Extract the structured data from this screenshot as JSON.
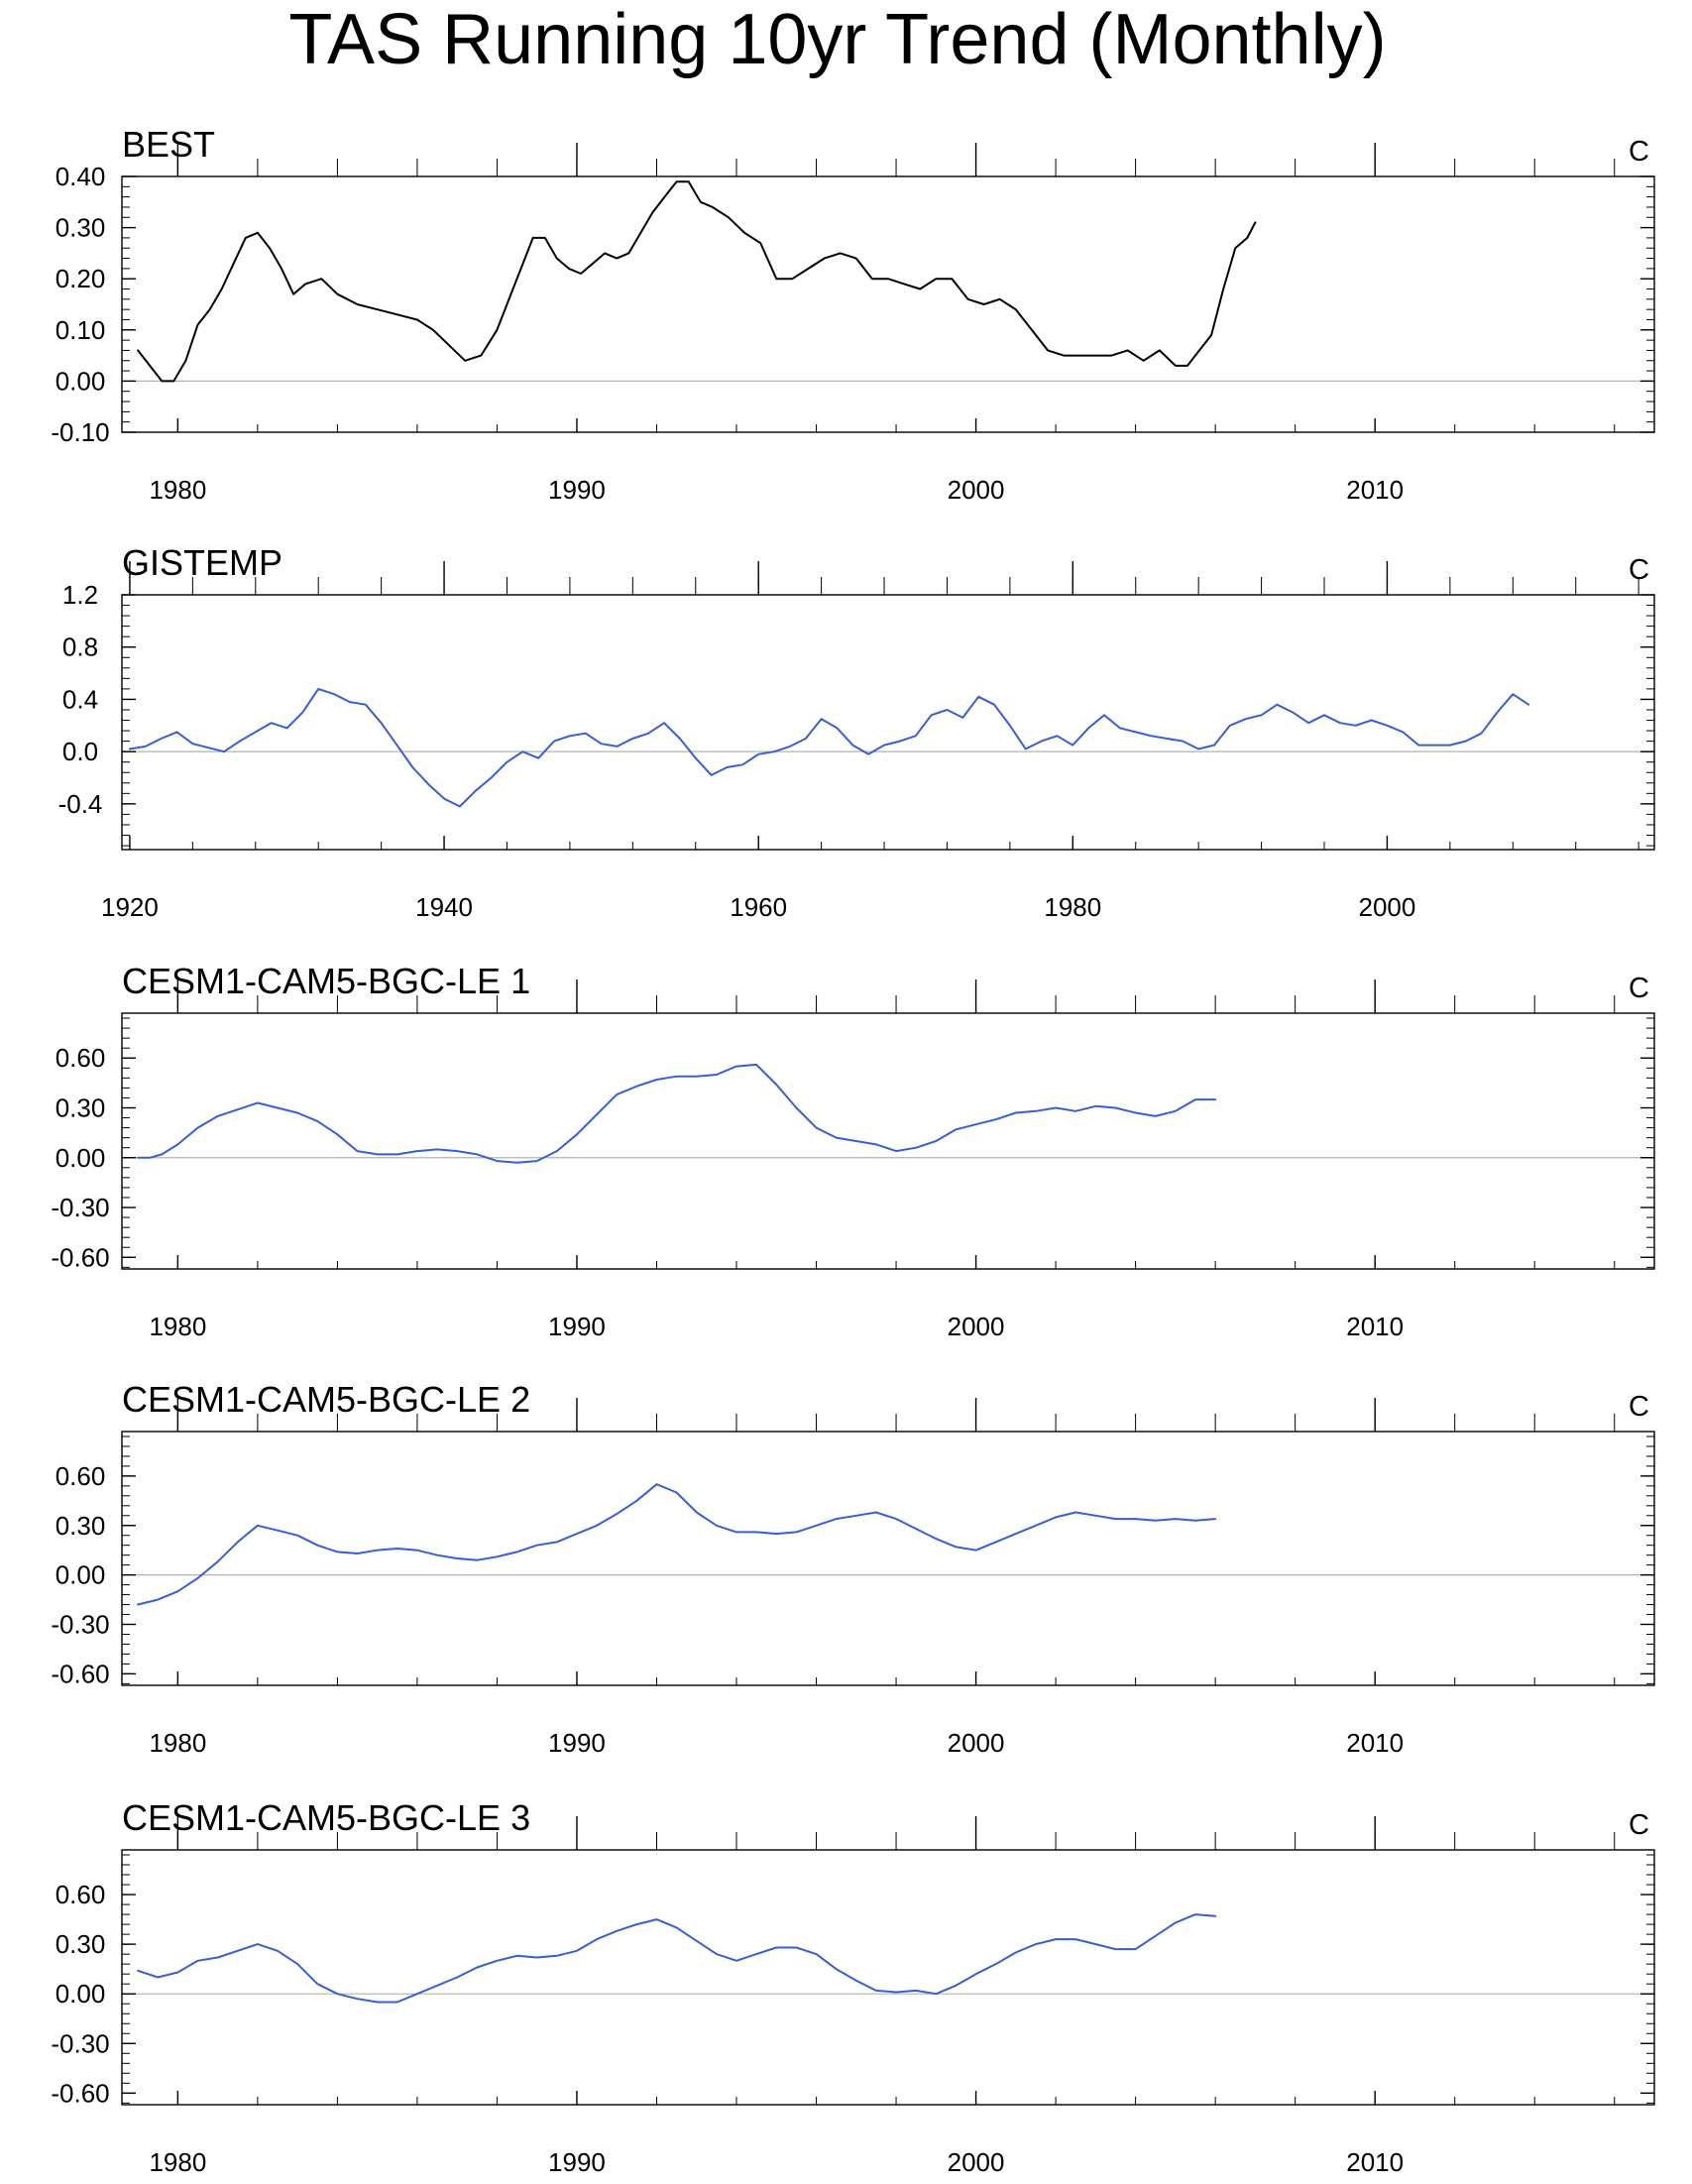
{
  "title": "TAS Running 10yr Trend (Monthly)",
  "chart_data": [
    {
      "type": "line",
      "title": "BEST",
      "units": "C",
      "color": "#000000",
      "xlim": [
        1978.6,
        2017
      ],
      "ylim": [
        -0.1,
        0.4
      ],
      "xticks": [
        1980,
        1990,
        2000,
        2010
      ],
      "yticks": [
        -0.1,
        0,
        0.1,
        0.2,
        0.3,
        0.4
      ],
      "ytick_labels": [
        "-0.10",
        "0.00",
        "0.10",
        "0.20",
        "0.30",
        "0.40"
      ],
      "x": [
        1979.0,
        1979.3,
        1979.6,
        1979.9,
        1980.2,
        1980.5,
        1980.8,
        1981.1,
        1981.4,
        1981.7,
        1982.0,
        1982.3,
        1982.6,
        1982.9,
        1983.2,
        1983.6,
        1984.0,
        1984.5,
        1985.0,
        1985.5,
        1986.0,
        1986.4,
        1986.8,
        1987.2,
        1987.6,
        1988.0,
        1988.3,
        1988.6,
        1988.9,
        1989.2,
        1989.5,
        1989.8,
        1990.1,
        1990.4,
        1990.7,
        1991.0,
        1991.3,
        1991.6,
        1991.9,
        1992.2,
        1992.5,
        1992.8,
        1993.1,
        1993.4,
        1993.8,
        1994.2,
        1994.6,
        1995.0,
        1995.4,
        1995.8,
        1996.2,
        1996.6,
        1997.0,
        1997.4,
        1997.8,
        1998.2,
        1998.6,
        1999.0,
        1999.4,
        1999.8,
        2000.2,
        2000.6,
        2001.0,
        2001.4,
        2001.8,
        2002.2,
        2002.6,
        2003.0,
        2003.4,
        2003.8,
        2004.2,
        2004.6,
        2005.0,
        2005.3,
        2005.6,
        2005.9,
        2006.2,
        2006.5,
        2006.8,
        2007.0
      ],
      "y": [
        0.06,
        0.03,
        0.0,
        0.0,
        0.04,
        0.11,
        0.14,
        0.18,
        0.23,
        0.28,
        0.29,
        0.26,
        0.22,
        0.17,
        0.19,
        0.2,
        0.17,
        0.15,
        0.14,
        0.13,
        0.12,
        0.1,
        0.07,
        0.04,
        0.05,
        0.1,
        0.16,
        0.22,
        0.28,
        0.28,
        0.24,
        0.22,
        0.21,
        0.23,
        0.25,
        0.24,
        0.25,
        0.29,
        0.33,
        0.36,
        0.39,
        0.39,
        0.35,
        0.34,
        0.32,
        0.29,
        0.27,
        0.2,
        0.2,
        0.22,
        0.24,
        0.25,
        0.24,
        0.2,
        0.2,
        0.19,
        0.18,
        0.2,
        0.2,
        0.16,
        0.15,
        0.16,
        0.14,
        0.1,
        0.06,
        0.05,
        0.05,
        0.05,
        0.05,
        0.06,
        0.04,
        0.06,
        0.03,
        0.03,
        0.06,
        0.09,
        0.18,
        0.26,
        0.28,
        0.31
      ]
    },
    {
      "type": "line",
      "title": "GISTEMP",
      "units": "C",
      "color": "#3a5fcd",
      "xlim": [
        1919.5,
        2017
      ],
      "ylim": [
        -0.75,
        1.2
      ],
      "xticks": [
        1920,
        1940,
        1960,
        1980,
        2000
      ],
      "yticks": [
        -0.4,
        0,
        0.4,
        0.8,
        1.2
      ],
      "ytick_labels": [
        "-0.4",
        "0.0",
        "0.4",
        "0.8",
        "1.2"
      ],
      "x": [
        1920,
        1921,
        1922,
        1923,
        1924,
        1925,
        1926,
        1927,
        1928,
        1929,
        1930,
        1931,
        1932,
        1933,
        1934,
        1935,
        1936,
        1937,
        1938,
        1939,
        1940,
        1941,
        1942,
        1943,
        1944,
        1945,
        1946,
        1947,
        1948,
        1949,
        1950,
        1951,
        1952,
        1953,
        1954,
        1955,
        1956,
        1957,
        1958,
        1959,
        1960,
        1961,
        1962,
        1963,
        1964,
        1965,
        1966,
        1967,
        1968,
        1969,
        1970,
        1971,
        1972,
        1973,
        1974,
        1975,
        1976,
        1977,
        1978,
        1979,
        1980,
        1981,
        1982,
        1983,
        1984,
        1985,
        1986,
        1987,
        1988,
        1989,
        1990,
        1991,
        1992,
        1993,
        1994,
        1995,
        1996,
        1997,
        1998,
        1999,
        2000,
        2001,
        2002,
        2003,
        2004,
        2005,
        2006,
        2007,
        2008,
        2009
      ],
      "y": [
        0.02,
        0.04,
        0.1,
        0.15,
        0.06,
        0.03,
        0.0,
        0.08,
        0.15,
        0.22,
        0.18,
        0.3,
        0.48,
        0.44,
        0.38,
        0.36,
        0.22,
        0.05,
        -0.12,
        -0.25,
        -0.36,
        -0.42,
        -0.3,
        -0.2,
        -0.08,
        0.0,
        -0.05,
        0.08,
        0.12,
        0.14,
        0.06,
        0.04,
        0.1,
        0.14,
        0.22,
        0.1,
        -0.05,
        -0.18,
        -0.12,
        -0.1,
        -0.02,
        0.0,
        0.04,
        0.1,
        0.25,
        0.18,
        0.05,
        -0.02,
        0.05,
        0.08,
        0.12,
        0.28,
        0.32,
        0.26,
        0.42,
        0.36,
        0.2,
        0.02,
        0.08,
        0.12,
        0.05,
        0.18,
        0.28,
        0.18,
        0.15,
        0.12,
        0.1,
        0.08,
        0.02,
        0.05,
        0.2,
        0.25,
        0.28,
        0.36,
        0.3,
        0.22,
        0.28,
        0.22,
        0.2,
        0.24,
        0.2,
        0.15,
        0.05,
        0.05,
        0.05,
        0.08,
        0.14,
        0.3,
        0.44,
        0.36
      ]
    },
    {
      "type": "line",
      "title": "CESM1-CAM5-BGC-LE 1",
      "units": "C",
      "color": "#3a5fcd",
      "xlim": [
        1978.6,
        2017
      ],
      "ylim": [
        -0.67,
        0.87
      ],
      "xticks": [
        1980,
        1990,
        2000,
        2010
      ],
      "yticks": [
        -0.6,
        -0.3,
        0,
        0.3,
        0.6
      ],
      "ytick_labels": [
        "-0.60",
        "-0.30",
        "0.00",
        "0.30",
        "0.60"
      ],
      "x": [
        1979.0,
        1979.3,
        1979.6,
        1980.0,
        1980.5,
        1981.0,
        1981.5,
        1982.0,
        1982.5,
        1983.0,
        1983.5,
        1984.0,
        1984.5,
        1985.0,
        1985.5,
        1986.0,
        1986.5,
        1987.0,
        1987.5,
        1988.0,
        1988.5,
        1989.0,
        1989.5,
        1990.0,
        1990.5,
        1991.0,
        1991.5,
        1992.0,
        1992.5,
        1993.0,
        1993.5,
        1994.0,
        1994.5,
        1995.0,
        1995.5,
        1996.0,
        1996.5,
        1997.0,
        1997.5,
        1998.0,
        1998.5,
        1999.0,
        1999.5,
        2000.0,
        2000.5,
        2001.0,
        2001.5,
        2002.0,
        2002.5,
        2003.0,
        2003.5,
        2004.0,
        2004.5,
        2005.0,
        2005.5,
        2006.0
      ],
      "y": [
        0.0,
        0.0,
        0.02,
        0.08,
        0.18,
        0.25,
        0.29,
        0.33,
        0.3,
        0.27,
        0.22,
        0.14,
        0.04,
        0.02,
        0.02,
        0.04,
        0.05,
        0.04,
        0.02,
        -0.02,
        -0.03,
        -0.02,
        0.04,
        0.14,
        0.26,
        0.38,
        0.43,
        0.47,
        0.49,
        0.49,
        0.5,
        0.55,
        0.56,
        0.44,
        0.3,
        0.18,
        0.12,
        0.1,
        0.08,
        0.04,
        0.06,
        0.1,
        0.17,
        0.2,
        0.23,
        0.27,
        0.28,
        0.3,
        0.28,
        0.31,
        0.3,
        0.27,
        0.25,
        0.28,
        0.35,
        0.35
      ]
    },
    {
      "type": "line",
      "title": "CESM1-CAM5-BGC-LE 2",
      "units": "C",
      "color": "#3a5fcd",
      "xlim": [
        1978.6,
        2017
      ],
      "ylim": [
        -0.67,
        0.87
      ],
      "xticks": [
        1980,
        1990,
        2000,
        2010
      ],
      "yticks": [
        -0.6,
        -0.3,
        0,
        0.3,
        0.6
      ],
      "ytick_labels": [
        "-0.60",
        "-0.30",
        "0.00",
        "0.30",
        "0.60"
      ],
      "x": [
        1979.0,
        1979.5,
        1980.0,
        1980.5,
        1981.0,
        1981.5,
        1982.0,
        1982.5,
        1983.0,
        1983.5,
        1984.0,
        1984.5,
        1985.0,
        1985.5,
        1986.0,
        1986.5,
        1987.0,
        1987.5,
        1988.0,
        1988.5,
        1989.0,
        1989.5,
        1990.0,
        1990.5,
        1991.0,
        1991.5,
        1992.0,
        1992.5,
        1993.0,
        1993.5,
        1994.0,
        1994.5,
        1995.0,
        1995.5,
        1996.0,
        1996.5,
        1997.0,
        1997.5,
        1998.0,
        1998.5,
        1999.0,
        1999.5,
        2000.0,
        2000.5,
        2001.0,
        2001.5,
        2002.0,
        2002.5,
        2003.0,
        2003.5,
        2004.0,
        2004.5,
        2005.0,
        2005.5,
        2006.0
      ],
      "y": [
        -0.18,
        -0.15,
        -0.1,
        -0.02,
        0.08,
        0.2,
        0.3,
        0.27,
        0.24,
        0.18,
        0.14,
        0.13,
        0.15,
        0.16,
        0.15,
        0.12,
        0.1,
        0.09,
        0.11,
        0.14,
        0.18,
        0.2,
        0.25,
        0.3,
        0.37,
        0.45,
        0.55,
        0.5,
        0.38,
        0.3,
        0.26,
        0.26,
        0.25,
        0.26,
        0.3,
        0.34,
        0.36,
        0.38,
        0.34,
        0.28,
        0.22,
        0.17,
        0.15,
        0.2,
        0.25,
        0.3,
        0.35,
        0.38,
        0.36,
        0.34,
        0.34,
        0.33,
        0.34,
        0.33,
        0.34
      ]
    },
    {
      "type": "line",
      "title": "CESM1-CAM5-BGC-LE 3",
      "units": "C",
      "color": "#3a5fcd",
      "xlim": [
        1978.6,
        2017
      ],
      "ylim": [
        -0.67,
        0.87
      ],
      "xticks": [
        1980,
        1990,
        2000,
        2010
      ],
      "yticks": [
        -0.6,
        -0.3,
        0,
        0.3,
        0.6
      ],
      "ytick_labels": [
        "-0.60",
        "-0.30",
        "0.00",
        "0.30",
        "0.60"
      ],
      "x": [
        1979.0,
        1979.5,
        1980.0,
        1980.5,
        1981.0,
        1981.5,
        1982.0,
        1982.5,
        1983.0,
        1983.5,
        1984.0,
        1984.5,
        1985.0,
        1985.5,
        1986.0,
        1986.5,
        1987.0,
        1987.5,
        1988.0,
        1988.5,
        1989.0,
        1989.5,
        1990.0,
        1990.5,
        1991.0,
        1991.5,
        1992.0,
        1992.5,
        1993.0,
        1993.5,
        1994.0,
        1994.5,
        1995.0,
        1995.5,
        1996.0,
        1996.5,
        1997.0,
        1997.5,
        1998.0,
        1998.5,
        1999.0,
        1999.5,
        2000.0,
        2000.5,
        2001.0,
        2001.5,
        2002.0,
        2002.5,
        2003.0,
        2003.5,
        2004.0,
        2004.5,
        2005.0,
        2005.5,
        2006.0
      ],
      "y": [
        0.14,
        0.1,
        0.13,
        0.2,
        0.22,
        0.26,
        0.3,
        0.26,
        0.18,
        0.06,
        0.0,
        -0.03,
        -0.05,
        -0.05,
        0.0,
        0.05,
        0.1,
        0.16,
        0.2,
        0.23,
        0.22,
        0.23,
        0.26,
        0.33,
        0.38,
        0.42,
        0.45,
        0.4,
        0.32,
        0.24,
        0.2,
        0.24,
        0.28,
        0.28,
        0.24,
        0.15,
        0.08,
        0.02,
        0.01,
        0.02,
        0.0,
        0.05,
        0.12,
        0.18,
        0.25,
        0.3,
        0.33,
        0.33,
        0.3,
        0.27,
        0.27,
        0.35,
        0.43,
        0.48,
        0.47
      ]
    }
  ]
}
